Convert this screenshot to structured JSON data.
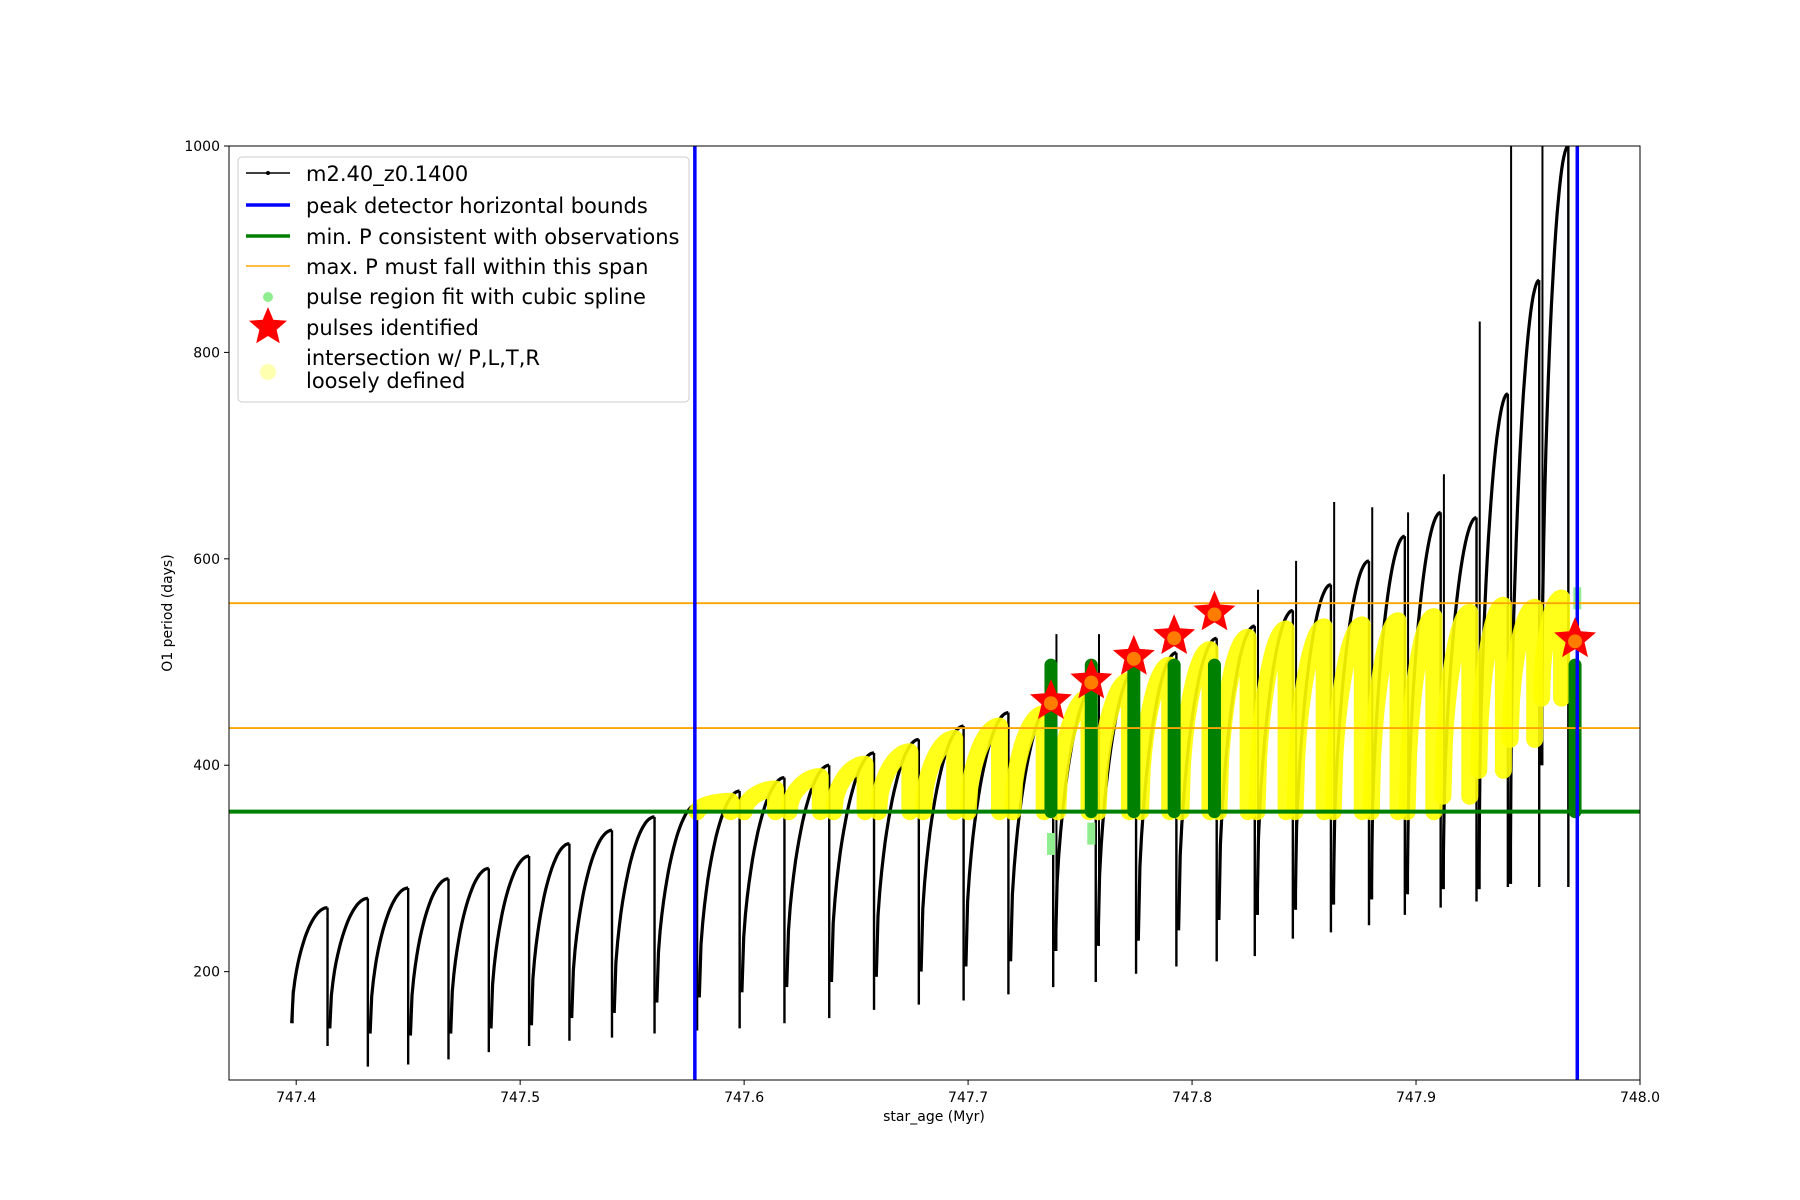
{
  "chart_data": {
    "type": "scatter",
    "xlabel": "star_age (Myr)",
    "ylabel": "O1 period (days)",
    "xlim": [
      747.37,
      748.0
    ],
    "ylim": [
      95,
      1000
    ],
    "xticks": [
      747.4,
      747.5,
      747.6,
      747.7,
      747.8,
      747.9,
      748.0
    ],
    "xtick_labels": [
      "747.4",
      "747.5",
      "747.6",
      "747.7",
      "747.8",
      "747.9",
      "748.0"
    ],
    "yticks": [
      200,
      400,
      600,
      800,
      1000
    ],
    "ytick_labels": [
      "200",
      "400",
      "600",
      "800",
      "1000"
    ],
    "grid": false,
    "legend_position": "top-left",
    "legend": [
      {
        "label": "m2.40_z0.1400",
        "kind": "line-marker",
        "color": "#000000"
      },
      {
        "label": "peak detector horizontal bounds",
        "kind": "line",
        "color": "#0000ff"
      },
      {
        "label": "min. P consistent with observations",
        "kind": "line",
        "color": "#008000"
      },
      {
        "label": "max. P must fall within this span",
        "kind": "thin-line",
        "color": "#ffa500"
      },
      {
        "label": "pulse region fit with cubic spline",
        "kind": "dot",
        "color": "#90ee90"
      },
      {
        "label": "pulses identified",
        "kind": "star",
        "color": "#ff0000"
      },
      {
        "label": "intersection w/ P,L,T,R",
        "label2": "loosely defined",
        "kind": "dot",
        "color": "#ffffb0"
      }
    ],
    "vertical_bounds": [
      747.578,
      747.972
    ],
    "min_period": 355,
    "max_period_span": [
      436,
      557
    ],
    "series": [
      {
        "name": "m2.40_z0.1400",
        "color": "#000000",
        "pulses": [
          {
            "start": 747.398,
            "end": 747.414,
            "p_min": 150,
            "p_max": 262,
            "drop": 128,
            "spike_hi": 182
          },
          {
            "start": 747.415,
            "end": 747.432,
            "p_min": 145,
            "p_max": 271,
            "drop": 108,
            "spike_hi": 0
          },
          {
            "start": 747.433,
            "end": 747.45,
            "p_min": 140,
            "p_max": 281,
            "drop": 110,
            "spike_hi": 0
          },
          {
            "start": 747.451,
            "end": 747.468,
            "p_min": 138,
            "p_max": 290,
            "drop": 115,
            "spike_hi": 0
          },
          {
            "start": 747.469,
            "end": 747.486,
            "p_min": 140,
            "p_max": 300,
            "drop": 122,
            "spike_hi": 0
          },
          {
            "start": 747.487,
            "end": 747.504,
            "p_min": 145,
            "p_max": 312,
            "drop": 128,
            "spike_hi": 0
          },
          {
            "start": 747.505,
            "end": 747.522,
            "p_min": 148,
            "p_max": 324,
            "drop": 133,
            "spike_hi": 0
          },
          {
            "start": 747.523,
            "end": 747.541,
            "p_min": 155,
            "p_max": 337,
            "drop": 136,
            "spike_hi": 0
          },
          {
            "start": 747.542,
            "end": 747.56,
            "p_min": 160,
            "p_max": 350,
            "drop": 140,
            "spike_hi": 0
          },
          {
            "start": 747.561,
            "end": 747.579,
            "p_min": 170,
            "p_max": 362,
            "drop": 143,
            "spike_hi": 0
          },
          {
            "start": 747.58,
            "end": 747.598,
            "p_min": 175,
            "p_max": 375,
            "drop": 145,
            "spike_hi": 0
          },
          {
            "start": 747.599,
            "end": 747.618,
            "p_min": 180,
            "p_max": 388,
            "drop": 150,
            "spike_hi": 0
          },
          {
            "start": 747.619,
            "end": 747.638,
            "p_min": 185,
            "p_max": 400,
            "drop": 155,
            "spike_hi": 0
          },
          {
            "start": 747.639,
            "end": 747.658,
            "p_min": 190,
            "p_max": 412,
            "drop": 163,
            "spike_hi": 0
          },
          {
            "start": 747.659,
            "end": 747.678,
            "p_min": 195,
            "p_max": 425,
            "drop": 168,
            "spike_hi": 0
          },
          {
            "start": 747.679,
            "end": 747.698,
            "p_min": 200,
            "p_max": 438,
            "drop": 172,
            "spike_hi": 0
          },
          {
            "start": 747.699,
            "end": 747.718,
            "p_min": 205,
            "p_max": 451,
            "drop": 178,
            "spike_hi": 0
          },
          {
            "start": 747.719,
            "end": 747.738,
            "p_min": 210,
            "p_max": 463,
            "drop": 185,
            "spike_hi": 0
          },
          {
            "start": 747.739,
            "end": 747.757,
            "p_min": 220,
            "p_max": 478,
            "drop": 190,
            "spike_hi": 527
          },
          {
            "start": 747.758,
            "end": 747.775,
            "p_min": 225,
            "p_max": 494,
            "drop": 198,
            "spike_hi": 527
          },
          {
            "start": 747.776,
            "end": 747.793,
            "p_min": 230,
            "p_max": 509,
            "drop": 205,
            "spike_hi": 0
          },
          {
            "start": 747.794,
            "end": 747.811,
            "p_min": 240,
            "p_max": 523,
            "drop": 210,
            "spike_hi": 0
          },
          {
            "start": 747.812,
            "end": 747.828,
            "p_min": 250,
            "p_max": 535,
            "drop": 215,
            "spike_hi": 0
          },
          {
            "start": 747.829,
            "end": 747.845,
            "p_min": 255,
            "p_max": 550,
            "drop": 232,
            "spike_hi": 570
          },
          {
            "start": 747.846,
            "end": 747.862,
            "p_min": 260,
            "p_max": 575,
            "drop": 238,
            "spike_hi": 598
          },
          {
            "start": 747.863,
            "end": 747.879,
            "p_min": 265,
            "p_max": 598,
            "drop": 245,
            "spike_hi": 655
          },
          {
            "start": 747.88,
            "end": 747.895,
            "p_min": 270,
            "p_max": 622,
            "drop": 255,
            "spike_hi": 650
          },
          {
            "start": 747.896,
            "end": 747.911,
            "p_min": 275,
            "p_max": 645,
            "drop": 262,
            "spike_hi": 645
          },
          {
            "start": 747.912,
            "end": 747.927,
            "p_min": 280,
            "p_max": 640,
            "drop": 268,
            "spike_hi": 682
          },
          {
            "start": 747.928,
            "end": 747.941,
            "p_min": 280,
            "p_max": 760,
            "drop": 282,
            "spike_hi": 830
          },
          {
            "start": 747.942,
            "end": 747.955,
            "p_min": 285,
            "p_max": 870,
            "drop": 282,
            "spike_hi": 1000
          },
          {
            "start": 747.956,
            "end": 747.968,
            "p_min": 400,
            "p_max": 1000,
            "drop": 282,
            "spike_hi": 1000
          }
        ]
      },
      {
        "name": "pulse region fit with cubic spline",
        "color": "#90ee90",
        "points": [
          [
            747.737,
            315
          ],
          [
            747.755,
            325
          ],
          [
            747.972,
            553
          ]
        ]
      },
      {
        "name": "pulses identified",
        "color": "#ff0000",
        "points": [
          [
            747.737,
            462
          ],
          [
            747.755,
            482
          ],
          [
            747.774,
            505
          ],
          [
            747.792,
            525
          ],
          [
            747.81,
            548
          ],
          [
            747.971,
            522
          ]
        ]
      },
      {
        "name": "intersection w/ P,L,T,R loosely defined",
        "color": "#ffff00",
        "arcs": [
          {
            "start": 747.579,
            "end": 747.594,
            "p_min": 355,
            "p_max": 365
          },
          {
            "start": 747.6,
            "end": 747.614,
            "p_min": 355,
            "p_max": 377
          },
          {
            "start": 747.62,
            "end": 747.634,
            "p_min": 355,
            "p_max": 389
          },
          {
            "start": 747.64,
            "end": 747.654,
            "p_min": 355,
            "p_max": 401
          },
          {
            "start": 747.66,
            "end": 747.674,
            "p_min": 355,
            "p_max": 413
          },
          {
            "start": 747.68,
            "end": 747.694,
            "p_min": 355,
            "p_max": 426
          },
          {
            "start": 747.7,
            "end": 747.714,
            "p_min": 355,
            "p_max": 438
          },
          {
            "start": 747.72,
            "end": 747.734,
            "p_min": 355,
            "p_max": 450
          },
          {
            "start": 747.74,
            "end": 747.754,
            "p_min": 355,
            "p_max": 466
          },
          {
            "start": 747.758,
            "end": 747.772,
            "p_min": 355,
            "p_max": 482
          },
          {
            "start": 747.777,
            "end": 747.79,
            "p_min": 355,
            "p_max": 497
          },
          {
            "start": 747.795,
            "end": 747.808,
            "p_min": 355,
            "p_max": 512
          },
          {
            "start": 747.812,
            "end": 747.825,
            "p_min": 355,
            "p_max": 524
          },
          {
            "start": 747.829,
            "end": 747.842,
            "p_min": 355,
            "p_max": 532
          },
          {
            "start": 747.846,
            "end": 747.859,
            "p_min": 355,
            "p_max": 534
          },
          {
            "start": 747.863,
            "end": 747.876,
            "p_min": 355,
            "p_max": 536
          },
          {
            "start": 747.88,
            "end": 747.892,
            "p_min": 355,
            "p_max": 540
          },
          {
            "start": 747.896,
            "end": 747.908,
            "p_min": 355,
            "p_max": 544
          },
          {
            "start": 747.912,
            "end": 747.924,
            "p_min": 370,
            "p_max": 548
          },
          {
            "start": 747.928,
            "end": 747.939,
            "p_min": 395,
            "p_max": 555
          },
          {
            "start": 747.942,
            "end": 747.953,
            "p_min": 425,
            "p_max": 553
          },
          {
            "start": 747.956,
            "end": 747.965,
            "p_min": 465,
            "p_max": 562
          }
        ]
      },
      {
        "name": "pulse regions (green)",
        "color": "#008000",
        "segments": [
          [
            747.737,
            355,
            497
          ],
          [
            747.755,
            355,
            497
          ],
          [
            747.774,
            355,
            497
          ],
          [
            747.792,
            355,
            497
          ],
          [
            747.81,
            355,
            497
          ],
          [
            747.971,
            355,
            497
          ]
        ]
      }
    ]
  }
}
